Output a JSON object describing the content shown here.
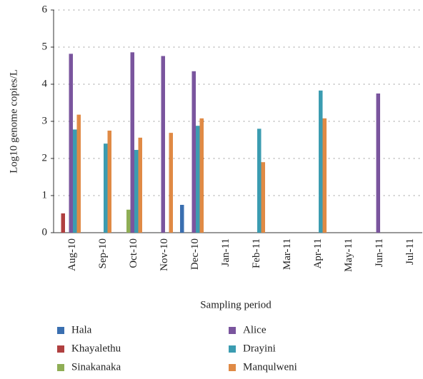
{
  "chart_data": {
    "type": "bar",
    "x_label": "Sampling period",
    "y_label": "Log10 genome copies/L",
    "categories": [
      "Aug-10",
      "Sep-10",
      "Oct-10",
      "Nov-10",
      "Dec-10",
      "Jan-11",
      "Feb-11",
      "Mar-11",
      "Apr-11",
      "May-11",
      "Jun-11",
      "Jul-11"
    ],
    "series": [
      {
        "name": "Hala",
        "color": "#3a6fb0",
        "values": [
          0,
          0,
          0,
          0,
          0.75,
          0,
          0,
          0,
          0,
          0,
          0,
          0
        ]
      },
      {
        "name": "Khayalethu",
        "color": "#b04040",
        "values": [
          0.52,
          0,
          0,
          0,
          0,
          0,
          0,
          0,
          0,
          0,
          0,
          0
        ]
      },
      {
        "name": "Sinakanaka",
        "color": "#8fae55",
        "values": [
          0,
          0,
          0.62,
          0,
          0,
          0,
          0,
          0,
          0,
          0,
          0,
          0
        ]
      },
      {
        "name": "Alice",
        "color": "#7a559e",
        "values": [
          4.82,
          0,
          4.86,
          4.76,
          4.35,
          0,
          0,
          0,
          0,
          0,
          3.75,
          0
        ]
      },
      {
        "name": "Drayini",
        "color": "#3b9cb1",
        "values": [
          2.78,
          2.4,
          2.23,
          0,
          2.88,
          0,
          2.8,
          0,
          3.83,
          0,
          0,
          0
        ]
      },
      {
        "name": "Manqulweni",
        "color": "#e08a45",
        "values": [
          3.18,
          2.75,
          2.56,
          2.69,
          3.08,
          0,
          1.9,
          0,
          3.08,
          0,
          0,
          0
        ]
      }
    ],
    "ylim": [
      0,
      6
    ],
    "yticks": [
      0,
      1,
      2,
      3,
      4,
      5,
      6
    ],
    "grid": true
  }
}
